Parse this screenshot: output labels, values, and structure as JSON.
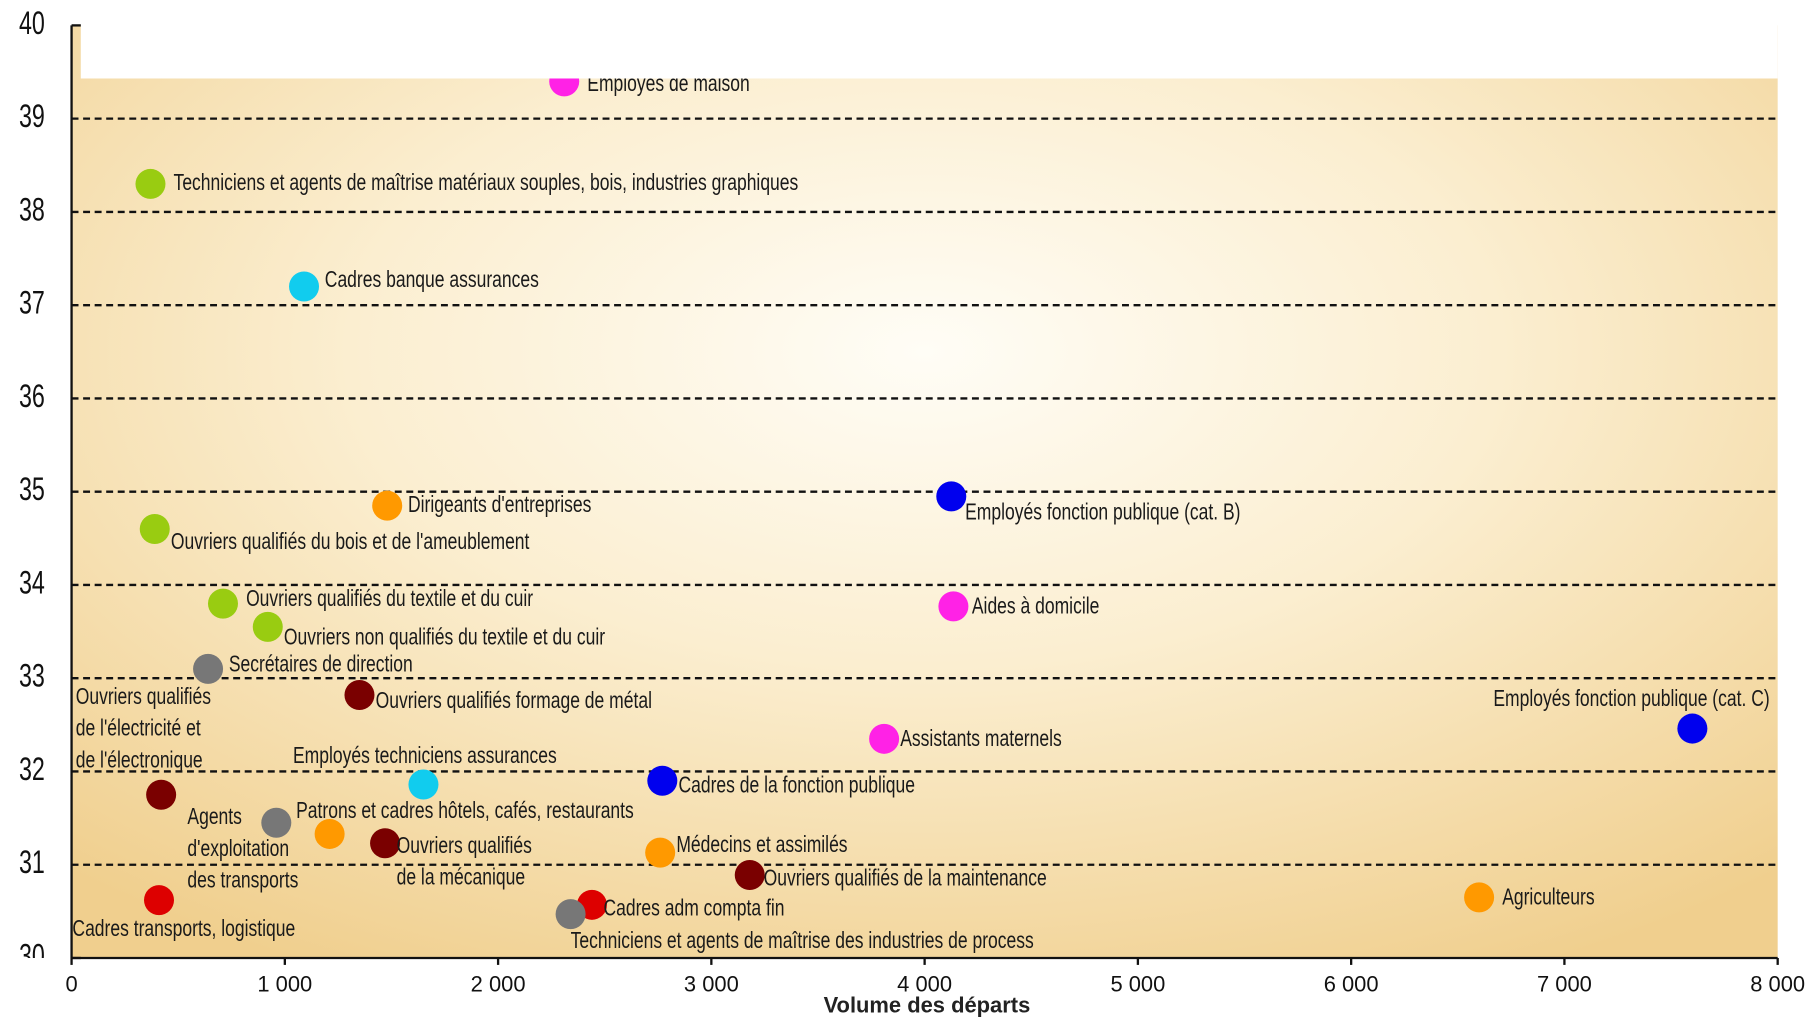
{
  "chart_data": {
    "type": "scatter",
    "xlabel": "Volume des départs",
    "xlim": [
      0,
      8000
    ],
    "xticks": [
      0,
      {
        "value": 1000,
        "label": "1 000"
      },
      {
        "value": 2000,
        "label": "2 000"
      },
      {
        "value": 3000,
        "label": "3 000"
      },
      {
        "value": 4000,
        "label": "4 000"
      },
      {
        "value": 5000,
        "label": "5 000"
      },
      {
        "value": 6000,
        "label": "6 000"
      },
      {
        "value": 7000,
        "label": "7 000"
      },
      {
        "value": 8000,
        "label": "8 000"
      }
    ],
    "ylim": [
      30,
      40
    ],
    "yticks": [
      30,
      31,
      32,
      33,
      34,
      35,
      36,
      37,
      38,
      39,
      40
    ],
    "grid": true,
    "points": [
      {
        "name": "Employés de maison",
        "x": 2310,
        "y": 39.4,
        "color": "#ff22e6"
      },
      {
        "name": "Techniciens et agents de maîtrise matériaux souples, bois, industries graphiques",
        "x": 370,
        "y": 38.3,
        "color": "#99cc11"
      },
      {
        "name": "Cadres banque assurances",
        "x": 1090,
        "y": 37.2,
        "color": "#11ccee"
      },
      {
        "name": "Dirigeants d'entreprises",
        "x": 1480,
        "y": 34.85,
        "color": "#ff9900"
      },
      {
        "name": "Employés fonction publique (cat. B)",
        "x": 4125,
        "y": 34.95,
        "color": "#0000ee"
      },
      {
        "name": "Ouvriers qualifiés du bois et de l'ameublement",
        "x": 390,
        "y": 34.6,
        "color": "#99cc11"
      },
      {
        "name": "Ouvriers qualifiés du textile et du cuir",
        "x": 710,
        "y": 33.8,
        "color": "#99cc11"
      },
      {
        "name": "Aides à domicile",
        "x": 4135,
        "y": 33.77,
        "color": "#ff22e6"
      },
      {
        "name": "Ouvriers non qualifiés du textile et du cuir",
        "x": 920,
        "y": 33.55,
        "color": "#99cc11"
      },
      {
        "name": "Secrétaires de direction",
        "x": 640,
        "y": 33.1,
        "color": "#777777"
      },
      {
        "name": "Ouvriers qualifiés formage de métal",
        "x": 1350,
        "y": 32.82,
        "color": "#7a0000"
      },
      {
        "name": "Employés fonction publique (cat. C)",
        "x": 7600,
        "y": 32.46,
        "color": "#0000ee"
      },
      {
        "name": "Assistants maternels",
        "x": 3810,
        "y": 32.35,
        "color": "#ff22e6"
      },
      {
        "name": "Employés techniciens assurances",
        "x": 1650,
        "y": 31.86,
        "color": "#11ccee"
      },
      {
        "name": "Cadres de la fonction publique",
        "x": 2770,
        "y": 31.9,
        "color": "#0000ee"
      },
      {
        "name": [
          "Ouvriers qualifiés",
          "de l'électricité et",
          "de l'électronique"
        ],
        "x": 420,
        "y": 31.75,
        "color": "#7a0000"
      },
      {
        "name": [
          "Agents",
          "d'exploitation",
          "des transports"
        ],
        "x": 960,
        "y": 31.45,
        "color": "#777777"
      },
      {
        "name": "Patrons et cadres hôtels, cafés, restaurants",
        "x": 1210,
        "y": 31.33,
        "color": "#ff9900"
      },
      {
        "name": [
          "Ouvriers qualifiés",
          "de la mécanique"
        ],
        "x": 1470,
        "y": 31.23,
        "color": "#7a0000"
      },
      {
        "name": "Médecins et assimilés",
        "x": 2760,
        "y": 31.13,
        "color": "#ff9900"
      },
      {
        "name": "Ouvriers qualifiés de la maintenance",
        "x": 3180,
        "y": 30.89,
        "color": "#7a0000"
      },
      {
        "name": "Agriculteurs",
        "x": 6600,
        "y": 30.65,
        "color": "#ff9900"
      },
      {
        "name": "Cadres transports, logistique",
        "x": 410,
        "y": 30.62,
        "color": "#dd0000"
      },
      {
        "name": "Cadres adm compta fin",
        "x": 2440,
        "y": 30.57,
        "color": "#dd0000"
      },
      {
        "name": "Techniciens et agents de maîtrise des industries de process",
        "x": 2340,
        "y": 30.47,
        "color": "#777777"
      }
    ]
  }
}
